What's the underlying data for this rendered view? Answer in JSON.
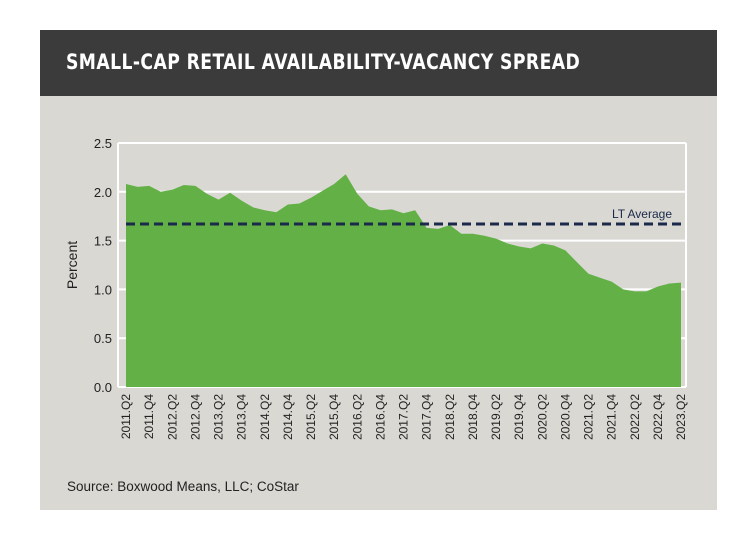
{
  "chart_data": {
    "type": "area",
    "title": "SMALL-CAP RETAIL AVAILABILITY-VACANCY SPREAD",
    "xlabel": "",
    "ylabel": "Percent",
    "ylim": [
      0,
      2.5
    ],
    "yticks": [
      "0.0",
      "0.5",
      "1.0",
      "1.5",
      "2.0",
      "2.5"
    ],
    "grid": true,
    "x": [
      "2011.Q2",
      "2011.Q3",
      "2011.Q4",
      "2012.Q1",
      "2012.Q2",
      "2012.Q3",
      "2012.Q4",
      "2013.Q1",
      "2013.Q2",
      "2013.Q3",
      "2013.Q4",
      "2014.Q1",
      "2014.Q2",
      "2014.Q3",
      "2014.Q4",
      "2015.Q1",
      "2015.Q2",
      "2015.Q3",
      "2015.Q4",
      "2016.Q1",
      "2016.Q2",
      "2016.Q3",
      "2016.Q4",
      "2017.Q1",
      "2017.Q2",
      "2017.Q3",
      "2017.Q4",
      "2018.Q1",
      "2018.Q2",
      "2018.Q3",
      "2018.Q4",
      "2019.Q1",
      "2019.Q2",
      "2019.Q3",
      "2019.Q4",
      "2020.Q1",
      "2020.Q2",
      "2020.Q3",
      "2020.Q4",
      "2021.Q1",
      "2021.Q2",
      "2021.Q3",
      "2021.Q4",
      "2022.Q1",
      "2022.Q2",
      "2022.Q3",
      "2022.Q4",
      "2023.Q1",
      "2023.Q2"
    ],
    "xtick_labels": [
      "2011.Q2",
      "2011.Q4",
      "2012.Q2",
      "2012.Q4",
      "2013.Q2",
      "2013.Q4",
      "2014.Q2",
      "2014.Q4",
      "2015.Q2",
      "2015.Q4",
      "2016.Q2",
      "2016.Q4",
      "2017.Q2",
      "2017.Q4",
      "2018.Q2",
      "2018.Q4",
      "2019.Q2",
      "2019.Q4",
      "2020.Q2",
      "2020.Q4",
      "2021.Q2",
      "2021.Q4",
      "2022.Q2",
      "2022.Q4",
      "2023.Q2"
    ],
    "series": [
      {
        "name": "Availability-Vacancy Spread",
        "color": "#62b046",
        "values": [
          2.08,
          2.05,
          2.06,
          2.0,
          2.02,
          2.07,
          2.06,
          1.98,
          1.92,
          1.99,
          1.91,
          1.84,
          1.81,
          1.79,
          1.87,
          1.88,
          1.94,
          2.01,
          2.08,
          2.18,
          1.98,
          1.85,
          1.81,
          1.82,
          1.78,
          1.81,
          1.63,
          1.62,
          1.66,
          1.57,
          1.57,
          1.55,
          1.52,
          1.47,
          1.44,
          1.42,
          1.47,
          1.45,
          1.4,
          1.28,
          1.16,
          1.12,
          1.08,
          1.0,
          0.98,
          0.98,
          1.03,
          1.06,
          1.07
        ]
      }
    ],
    "reference_line": {
      "label": "LT Average",
      "value": 1.67,
      "color": "#1b2a4a"
    }
  },
  "source": "Source: Boxwood Means, LLC; CoStar"
}
